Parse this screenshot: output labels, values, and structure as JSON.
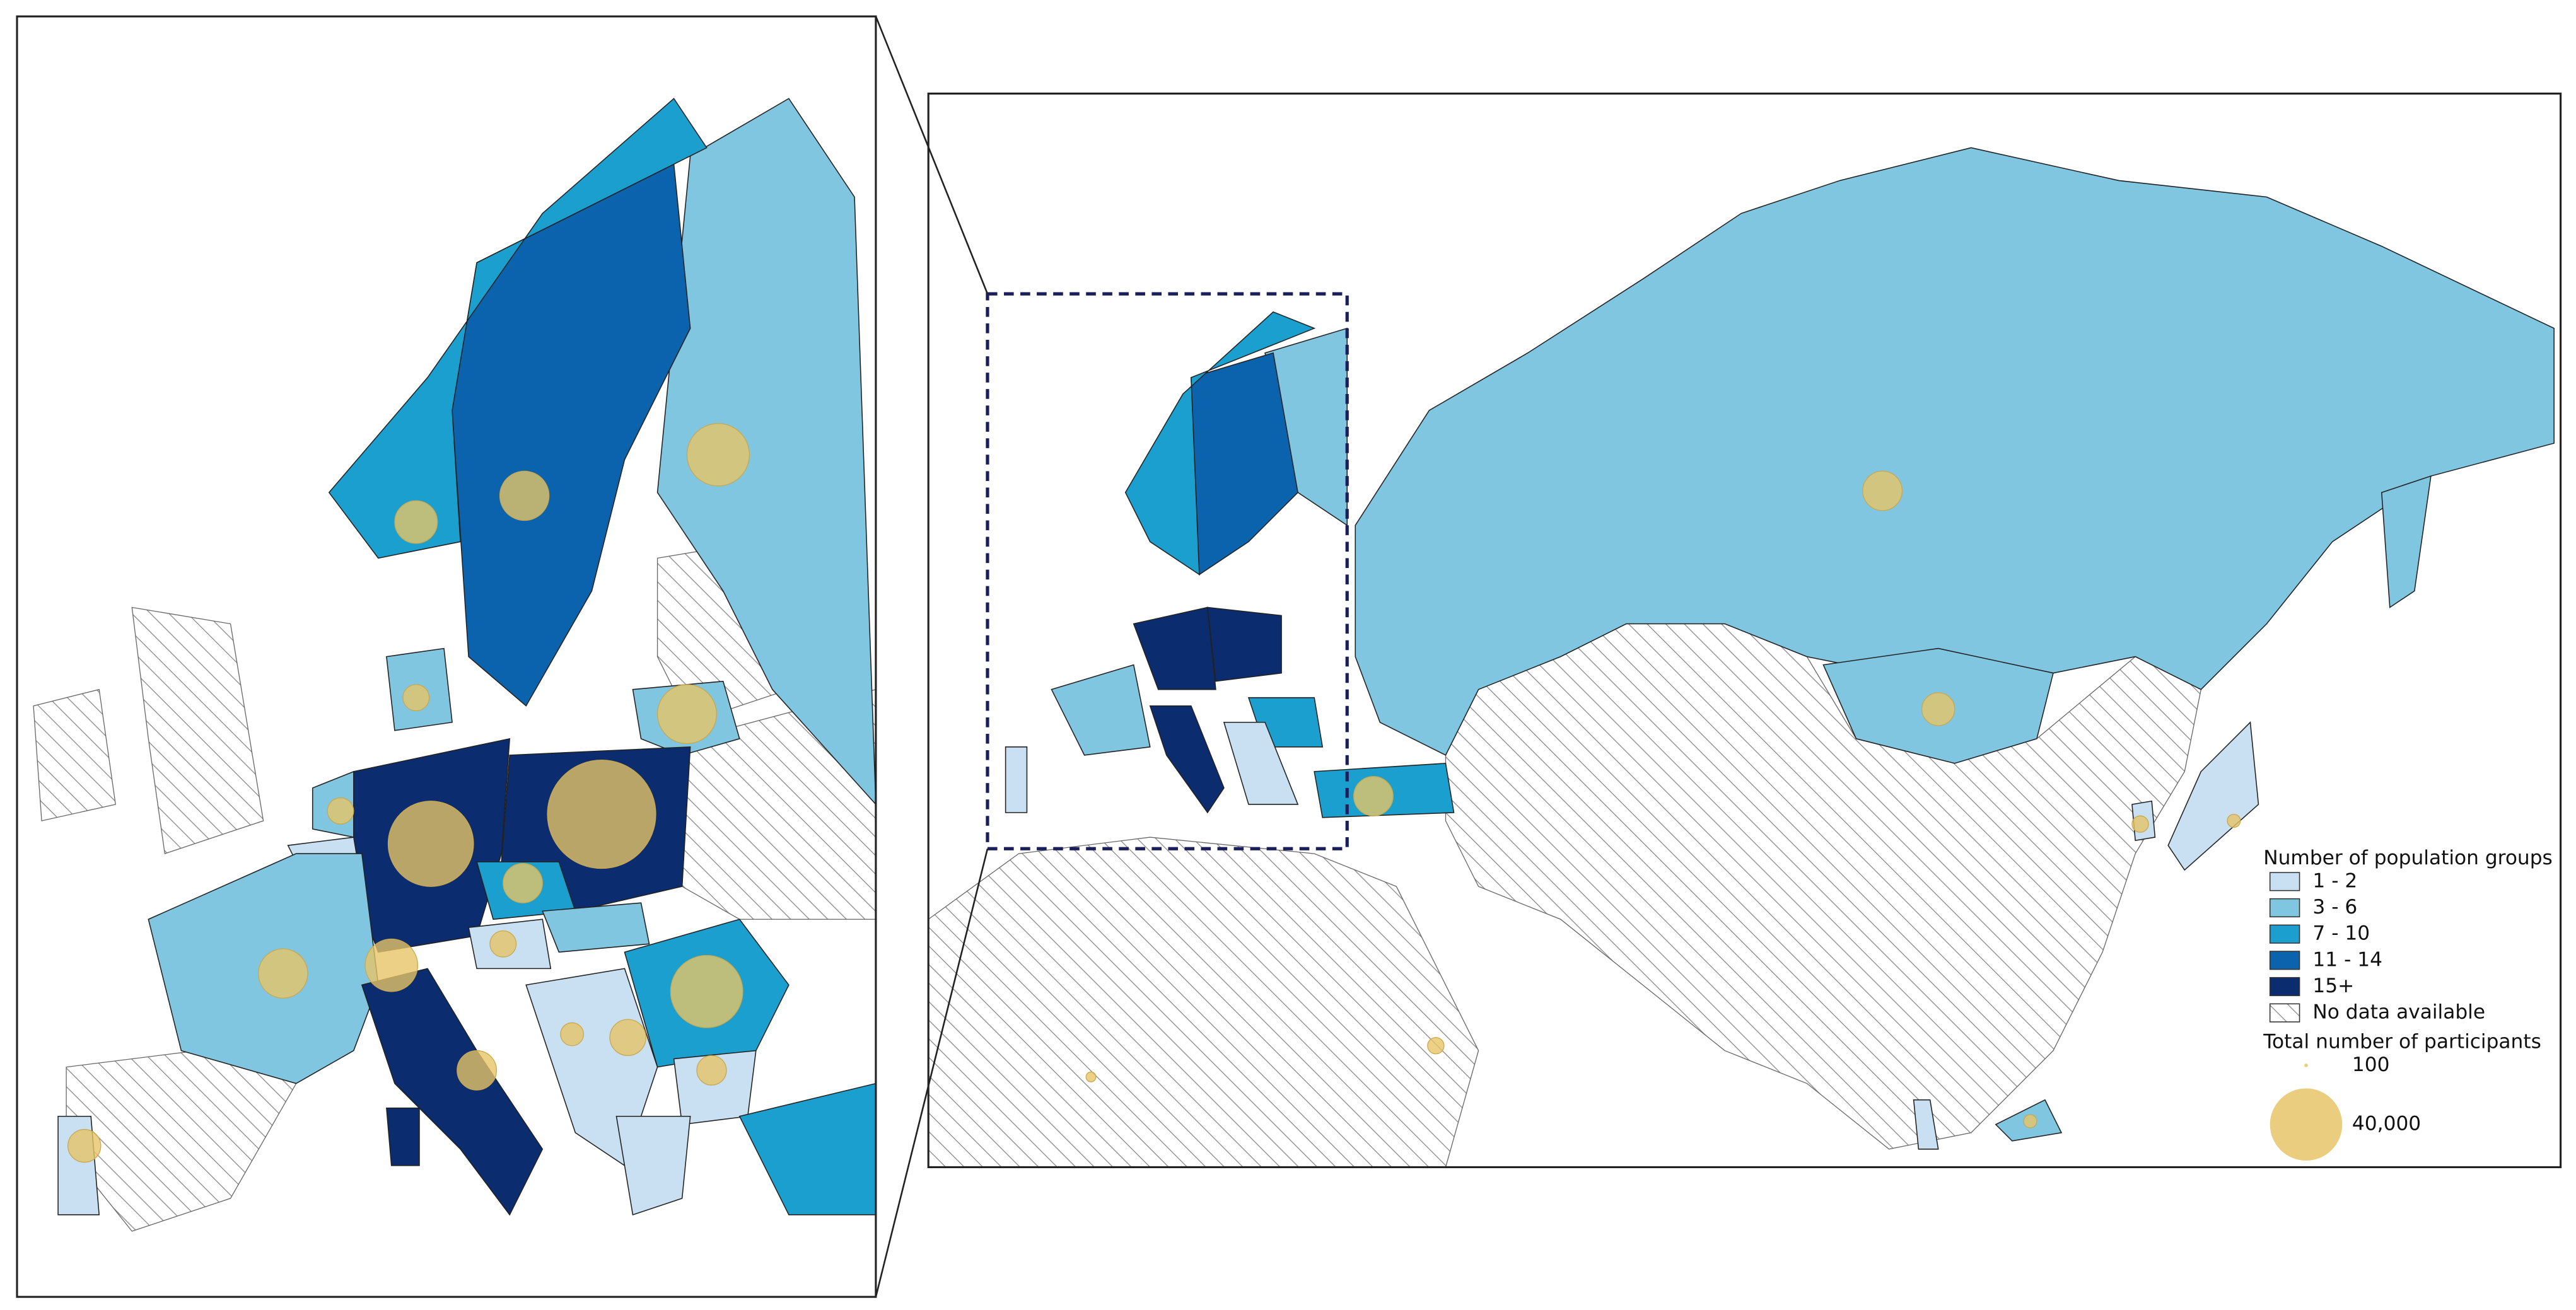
{
  "legend": {
    "title": "Number of population groups",
    "classes": [
      {
        "label": "1 - 2",
        "color": "#c9e0f2"
      },
      {
        "label": "3 - 6",
        "color": "#80c6e0"
      },
      {
        "label": "7 - 10",
        "color": "#1a9fcf"
      },
      {
        "label": "11 - 14",
        "color": "#0b63ad"
      },
      {
        "label": "15+",
        "color": "#0b2c6e"
      }
    ],
    "no_data": "No data available",
    "participants_title": "Total number of participants",
    "participant_sizes": [
      {
        "value": 100,
        "label": "100"
      },
      {
        "value": 40000,
        "label": "40,000"
      }
    ],
    "bubble_color": "#e6c467"
  }
}
